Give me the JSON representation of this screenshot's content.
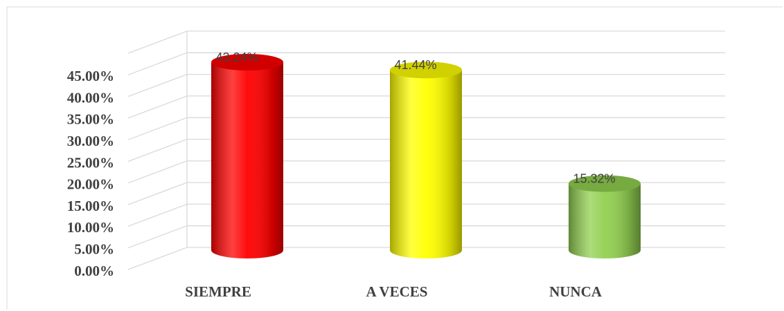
{
  "chart_data": {
    "type": "bar",
    "categories": [
      "SIEMPRE",
      "A VECES",
      "NUNCA"
    ],
    "values": [
      43.24,
      41.44,
      15.32
    ],
    "value_labels": [
      "43.24%",
      "41.44%",
      "15.32%"
    ],
    "colors": [
      "#ff0000",
      "#ffff00",
      "#92d050"
    ],
    "ylim": [
      0,
      50
    ],
    "yticks": [
      {
        "value": 0,
        "label": "0.00%"
      },
      {
        "value": 5,
        "label": "5.00%"
      },
      {
        "value": 10,
        "label": "10.00%"
      },
      {
        "value": 15,
        "label": "15.00%"
      },
      {
        "value": 20,
        "label": "20.00%"
      },
      {
        "value": 25,
        "label": "25.00%"
      },
      {
        "value": 30,
        "label": "30.00%"
      },
      {
        "value": 35,
        "label": "35.00%"
      },
      {
        "value": 40,
        "label": "40.00%"
      },
      {
        "value": 45,
        "label": "45.00%"
      }
    ],
    "grid": true
  }
}
